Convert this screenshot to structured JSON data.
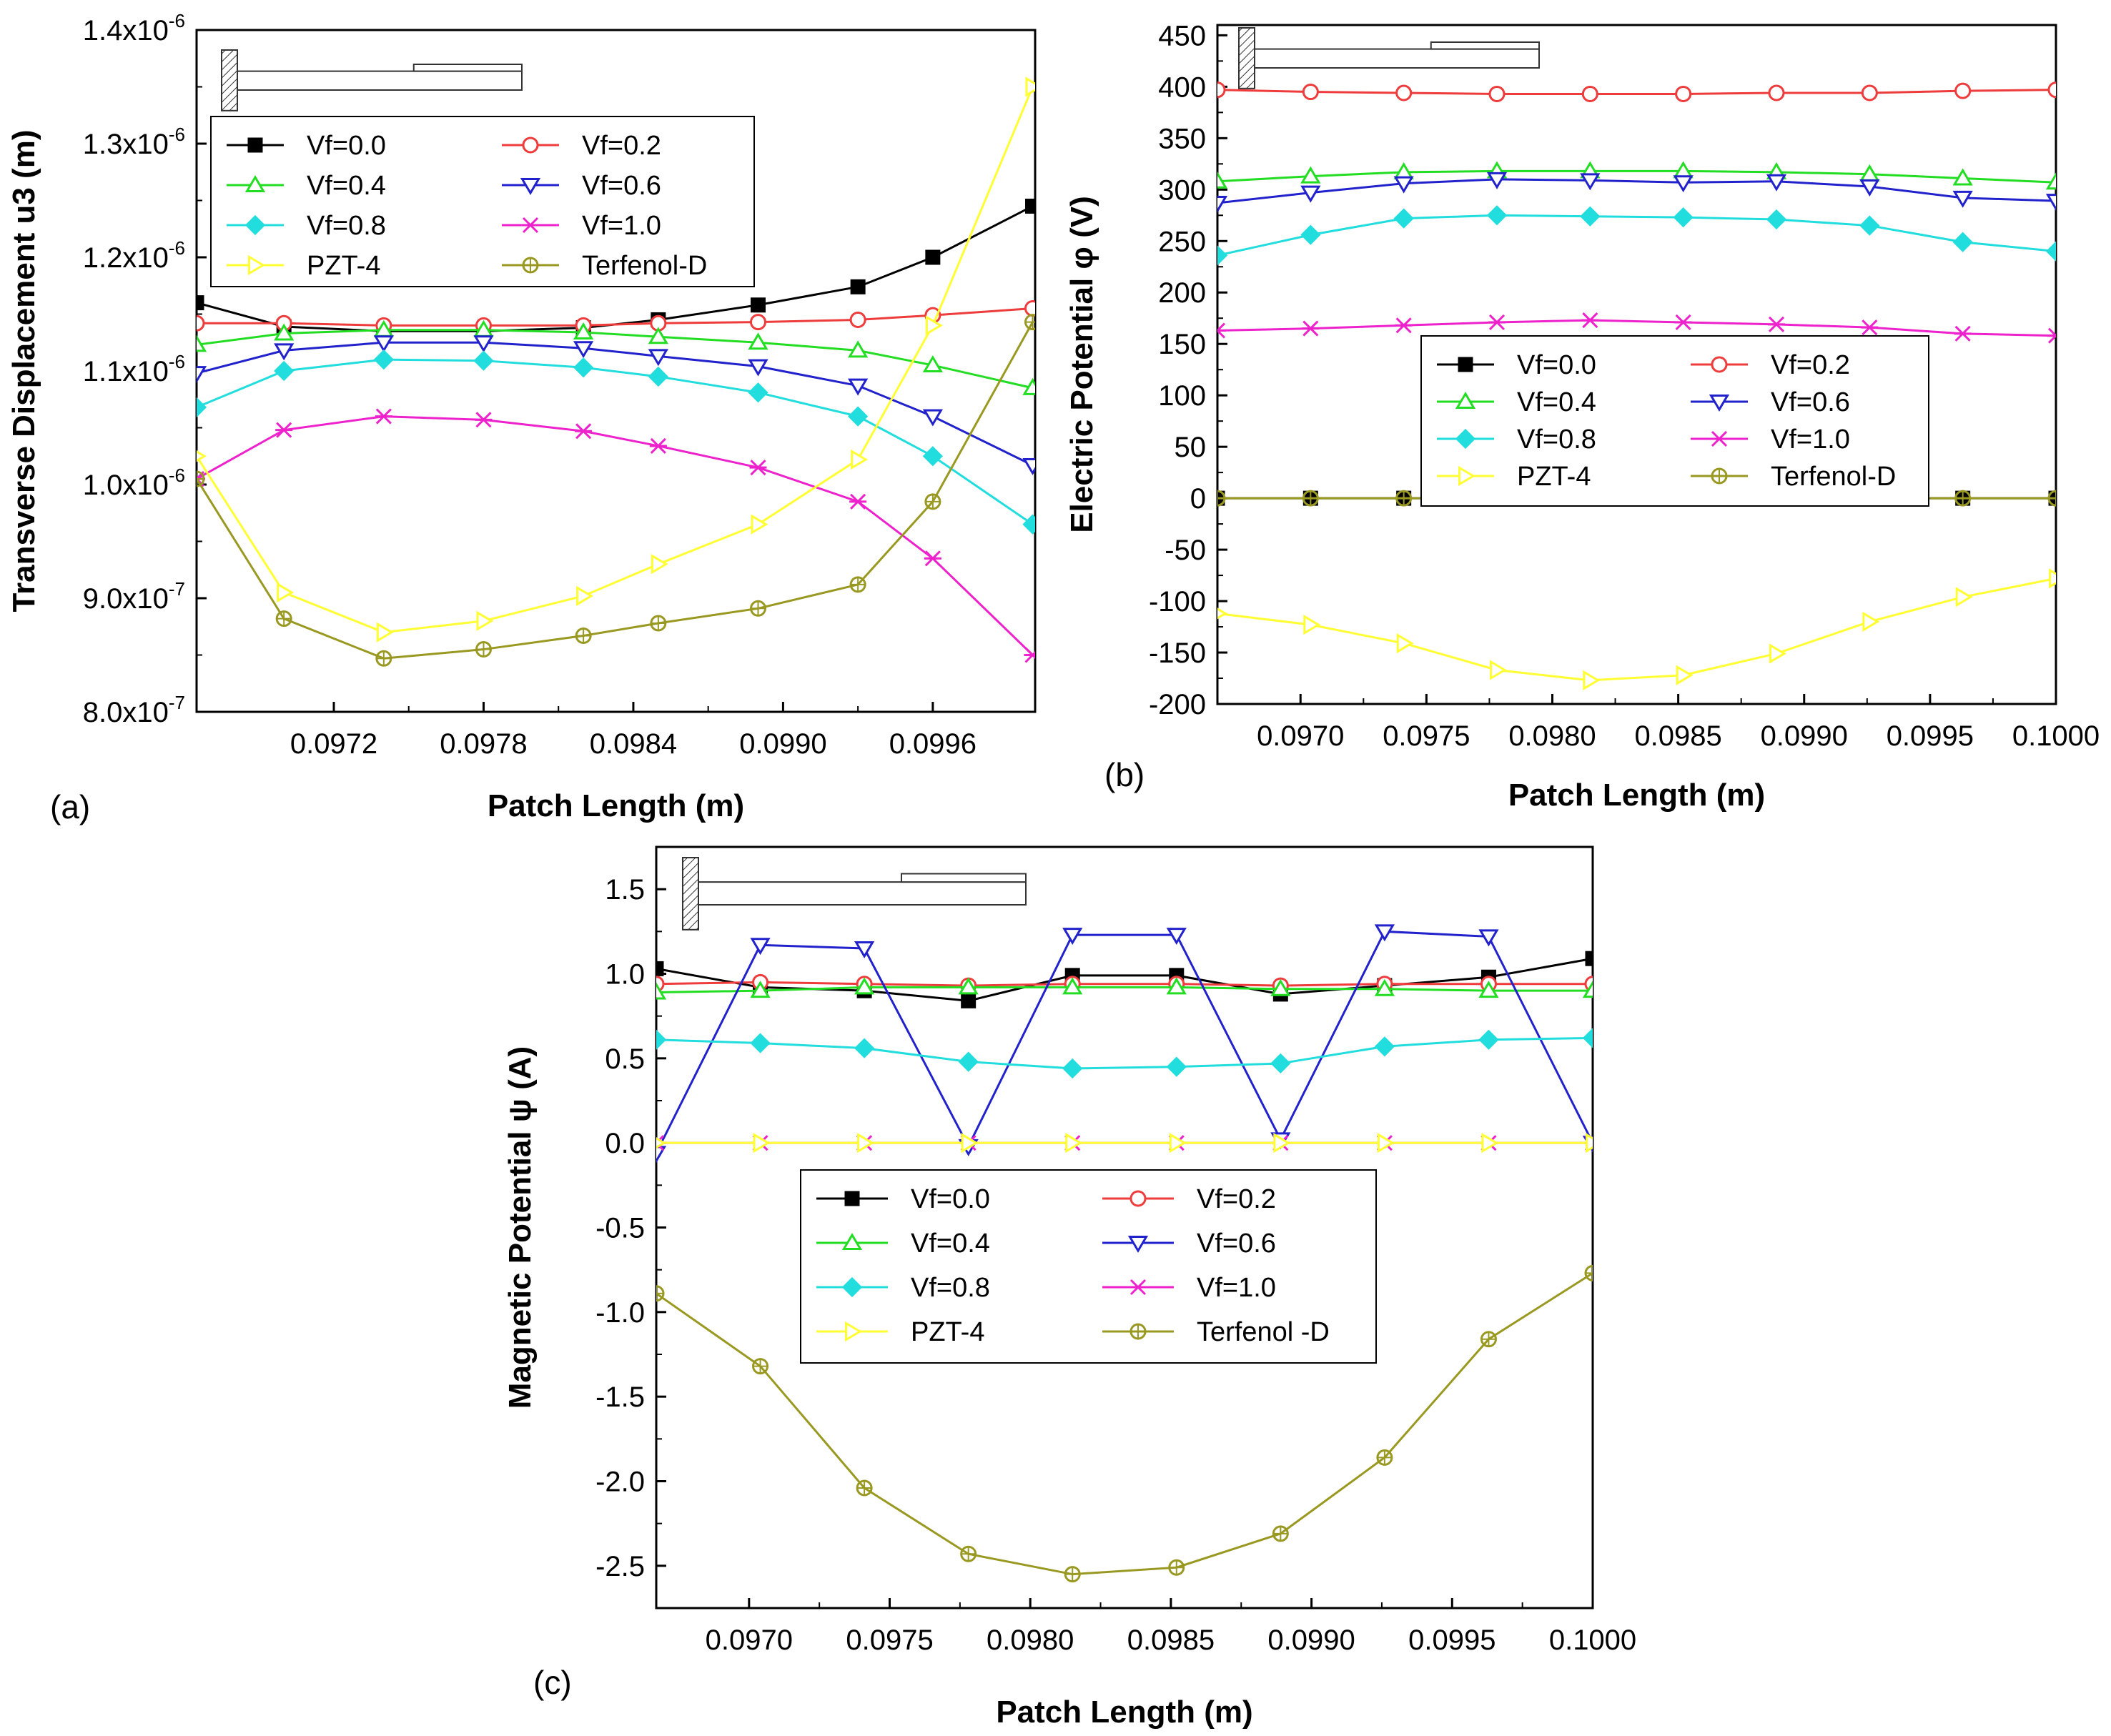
{
  "panel_labels": [
    "(a)",
    "(b)",
    "(c)"
  ],
  "chart_data": [
    {
      "type": "line",
      "panel": "(a)",
      "xlabel": "Patch Length (m)",
      "ylabel": "Transverse Displacement u3 (m)",
      "xlim": [
        0.09665,
        0.10001
      ],
      "ylim": [
        8e-07,
        1.4e-06
      ],
      "x_ticks": [
        0.0972,
        0.0978,
        0.0984,
        0.099,
        0.0996
      ],
      "x_tick_labels": [
        "0.0972",
        "0.0978",
        "0.0984",
        "0.0990",
        "0.0996"
      ],
      "y_ticks": [
        8e-07,
        9e-07,
        1e-06,
        1.1e-06,
        1.2e-06,
        1.3e-06,
        1.4e-06
      ],
      "y_tick_labels": [
        "8.0x10-7",
        "9.0x10-7",
        "1.0x10-6",
        "1.1x10-6",
        "1.2x10-6",
        "1.3x10-6",
        "1.4x10-6"
      ],
      "x": [
        0.09665,
        0.097,
        0.0974,
        0.0978,
        0.0982,
        0.0985,
        0.0989,
        0.0993,
        0.0996,
        0.1
      ],
      "grid": false,
      "legend": "top-left",
      "series": [
        {
          "name": "Vf=0.0",
          "color": "#000000",
          "marker": "square-filled",
          "values": [
            1.16e-06,
            1.139e-06,
            1.135e-06,
            1.135e-06,
            1.138e-06,
            1.145e-06,
            1.158e-06,
            1.174e-06,
            1.2e-06,
            1.245e-06
          ]
        },
        {
          "name": "Vf=0.2",
          "color": "#ee3b3b",
          "marker": "circle-open",
          "values": [
            1.142e-06,
            1.142e-06,
            1.14e-06,
            1.14e-06,
            1.14e-06,
            1.142e-06,
            1.143e-06,
            1.145e-06,
            1.149e-06,
            1.155e-06
          ]
        },
        {
          "name": "Vf=0.4",
          "color": "#22dd22",
          "marker": "triangle-up-open",
          "values": [
            1.123e-06,
            1.133e-06,
            1.136e-06,
            1.136e-06,
            1.134e-06,
            1.13e-06,
            1.125e-06,
            1.118e-06,
            1.105e-06,
            1.085e-06
          ]
        },
        {
          "name": "Vf=0.6",
          "color": "#2222cc",
          "marker": "triangle-down-open",
          "values": [
            1.098e-06,
            1.118e-06,
            1.125e-06,
            1.125e-06,
            1.12e-06,
            1.113e-06,
            1.104e-06,
            1.087e-06,
            1.06e-06,
            1.017e-06
          ]
        },
        {
          "name": "Vf=0.8",
          "color": "#22dddd",
          "marker": "diamond-cross",
          "values": [
            1.068e-06,
            1.1e-06,
            1.11e-06,
            1.109e-06,
            1.103e-06,
            1.095e-06,
            1.081e-06,
            1.06e-06,
            1.025e-06,
            9.65e-07
          ]
        },
        {
          "name": "Vf=1.0",
          "color": "#ee22cc",
          "marker": "star",
          "values": [
            1.005e-06,
            1.048e-06,
            1.06e-06,
            1.057e-06,
            1.047e-06,
            1.034e-06,
            1.015e-06,
            9.85e-07,
            9.35e-07,
            8.5e-07
          ]
        },
        {
          "name": "PZT-4",
          "color": "#ffff33",
          "marker": "triangle-right-open",
          "values": [
            1.025e-06,
            9.05e-07,
            8.7e-07,
            8.8e-07,
            9.02e-07,
            9.3e-07,
            9.65e-07,
            1.022e-06,
            1.14e-06,
            1.35e-06
          ]
        },
        {
          "name": "Terfenol-D",
          "color": "#999922",
          "marker": "circle-cross",
          "values": [
            1.005e-06,
            8.82e-07,
            8.47e-07,
            8.55e-07,
            8.67e-07,
            8.78e-07,
            8.91e-07,
            9.12e-07,
            9.85e-07,
            1.143e-06
          ]
        }
      ]
    },
    {
      "type": "line",
      "panel": "(b)",
      "xlabel": "Patch Length (m)",
      "ylabel": "Electric Potential φ (V)",
      "xlim": [
        0.09667,
        0.1
      ],
      "ylim": [
        -200,
        460
      ],
      "x_ticks": [
        0.097,
        0.0975,
        0.098,
        0.0985,
        0.099,
        0.0995,
        0.1
      ],
      "x_tick_labels": [
        "0.0970",
        "0.0975",
        "0.0980",
        "0.0985",
        "0.0990",
        "0.0995",
        "0.1000"
      ],
      "y_ticks": [
        -200,
        -150,
        -100,
        -50,
        0,
        50,
        100,
        150,
        200,
        250,
        300,
        350,
        400,
        450
      ],
      "y_tick_labels": [
        "-200",
        "-150",
        "-100",
        "-50",
        "0",
        "50",
        "100",
        "150",
        "200",
        "250",
        "300",
        "350",
        "400",
        "450"
      ],
      "x": [
        0.09667,
        0.09704,
        0.09741,
        0.09778,
        0.09815,
        0.09852,
        0.09889,
        0.09926,
        0.09963,
        0.1
      ],
      "grid": false,
      "legend": "center",
      "series": [
        {
          "name": "Vf=0.0",
          "color": "#000000",
          "marker": "square-filled",
          "values": [
            0,
            0,
            0,
            0,
            0,
            0,
            0,
            0,
            0,
            0
          ]
        },
        {
          "name": "Vf=0.2",
          "color": "#ee3b3b",
          "marker": "circle-open",
          "values": [
            397,
            395,
            394,
            393,
            393,
            393,
            394,
            394,
            396,
            397
          ]
        },
        {
          "name": "Vf=0.4",
          "color": "#22dd22",
          "marker": "triangle-up-open",
          "values": [
            308,
            313,
            317,
            318,
            318,
            318,
            317,
            315,
            311,
            307
          ]
        },
        {
          "name": "Vf=0.6",
          "color": "#2222cc",
          "marker": "triangle-down-open",
          "values": [
            287,
            297,
            306,
            310,
            309,
            307,
            308,
            303,
            292,
            289
          ]
        },
        {
          "name": "Vf=0.8",
          "color": "#22dddd",
          "marker": "diamond-cross",
          "values": [
            236,
            256,
            272,
            275,
            274,
            273,
            271,
            265,
            249,
            240
          ]
        },
        {
          "name": "Vf=1.0",
          "color": "#ee22cc",
          "marker": "star",
          "values": [
            163,
            165,
            168,
            171,
            173,
            171,
            169,
            166,
            160,
            158
          ]
        },
        {
          "name": "PZT-4",
          "color": "#ffff33",
          "marker": "triangle-right-open",
          "values": [
            -112,
            -123,
            -141,
            -167,
            -177,
            -172,
            -151,
            -120,
            -96,
            -78
          ]
        },
        {
          "name": "Terfenol-D",
          "color": "#999922",
          "marker": "circle-cross",
          "values": [
            0,
            0,
            0,
            0,
            0,
            0,
            0,
            0,
            0,
            0
          ]
        }
      ]
    },
    {
      "type": "line",
      "panel": "(c)",
      "xlabel": "Patch Length (m)",
      "ylabel": "Magnetic Potential ψ (A)",
      "xlim": [
        0.09667,
        0.1
      ],
      "ylim": [
        -2.75,
        1.75
      ],
      "x_ticks": [
        0.097,
        0.0975,
        0.098,
        0.0985,
        0.099,
        0.0995,
        0.1
      ],
      "x_tick_labels": [
        "0.0970",
        "0.0975",
        "0.0980",
        "0.0985",
        "0.0990",
        "0.0995",
        "0.1000"
      ],
      "y_ticks": [
        -2.5,
        -2.0,
        -1.5,
        -1.0,
        -0.5,
        0.0,
        0.5,
        1.0,
        1.5
      ],
      "y_tick_labels": [
        "-2.5",
        "-2.0",
        "-1.5",
        "-1.0",
        "-0.5",
        "0.0",
        "0.5",
        "1.0",
        "1.5"
      ],
      "x": [
        0.09667,
        0.09704,
        0.09741,
        0.09778,
        0.09815,
        0.09852,
        0.09889,
        0.09926,
        0.09963,
        0.1
      ],
      "grid": false,
      "legend": "center",
      "series": [
        {
          "name": "Vf=0.0",
          "color": "#000000",
          "marker": "square-filled",
          "values": [
            1.03,
            0.92,
            0.9,
            0.84,
            0.99,
            0.99,
            0.88,
            0.93,
            0.98,
            1.09
          ]
        },
        {
          "name": "Vf=0.2",
          "color": "#ee3b3b",
          "marker": "circle-open",
          "values": [
            0.94,
            0.95,
            0.94,
            0.93,
            0.94,
            0.94,
            0.93,
            0.94,
            0.94,
            0.94
          ]
        },
        {
          "name": "Vf=0.4",
          "color": "#22dd22",
          "marker": "triangle-up-open",
          "values": [
            0.89,
            0.9,
            0.92,
            0.92,
            0.92,
            0.92,
            0.91,
            0.91,
            0.9,
            0.9
          ]
        },
        {
          "name": "Vf=0.6",
          "color": "#2222cc",
          "marker": "triangle-down-open",
          "values": [
            -0.06,
            1.17,
            1.15,
            -0.02,
            1.23,
            1.23,
            0.02,
            1.25,
            1.22,
            0.0
          ]
        },
        {
          "name": "Vf=0.8",
          "color": "#22dddd",
          "marker": "diamond-cross",
          "values": [
            0.61,
            0.59,
            0.56,
            0.48,
            0.44,
            0.45,
            0.47,
            0.57,
            0.61,
            0.62
          ]
        },
        {
          "name": "Vf=1.0",
          "color": "#ee22cc",
          "marker": "star",
          "values": [
            0,
            0,
            0,
            0,
            0,
            0,
            0,
            0,
            0,
            0
          ]
        },
        {
          "name": "PZT-4",
          "color": "#ffff33",
          "marker": "triangle-right-open",
          "values": [
            0,
            0,
            0,
            0,
            0,
            0,
            0,
            0,
            0,
            0
          ]
        },
        {
          "name": "Terfenol -D",
          "color": "#999922",
          "marker": "circle-cross",
          "values": [
            -0.89,
            -1.32,
            -2.04,
            -2.43,
            -2.55,
            -2.51,
            -2.31,
            -1.86,
            -1.16,
            -0.77
          ]
        }
      ]
    }
  ]
}
